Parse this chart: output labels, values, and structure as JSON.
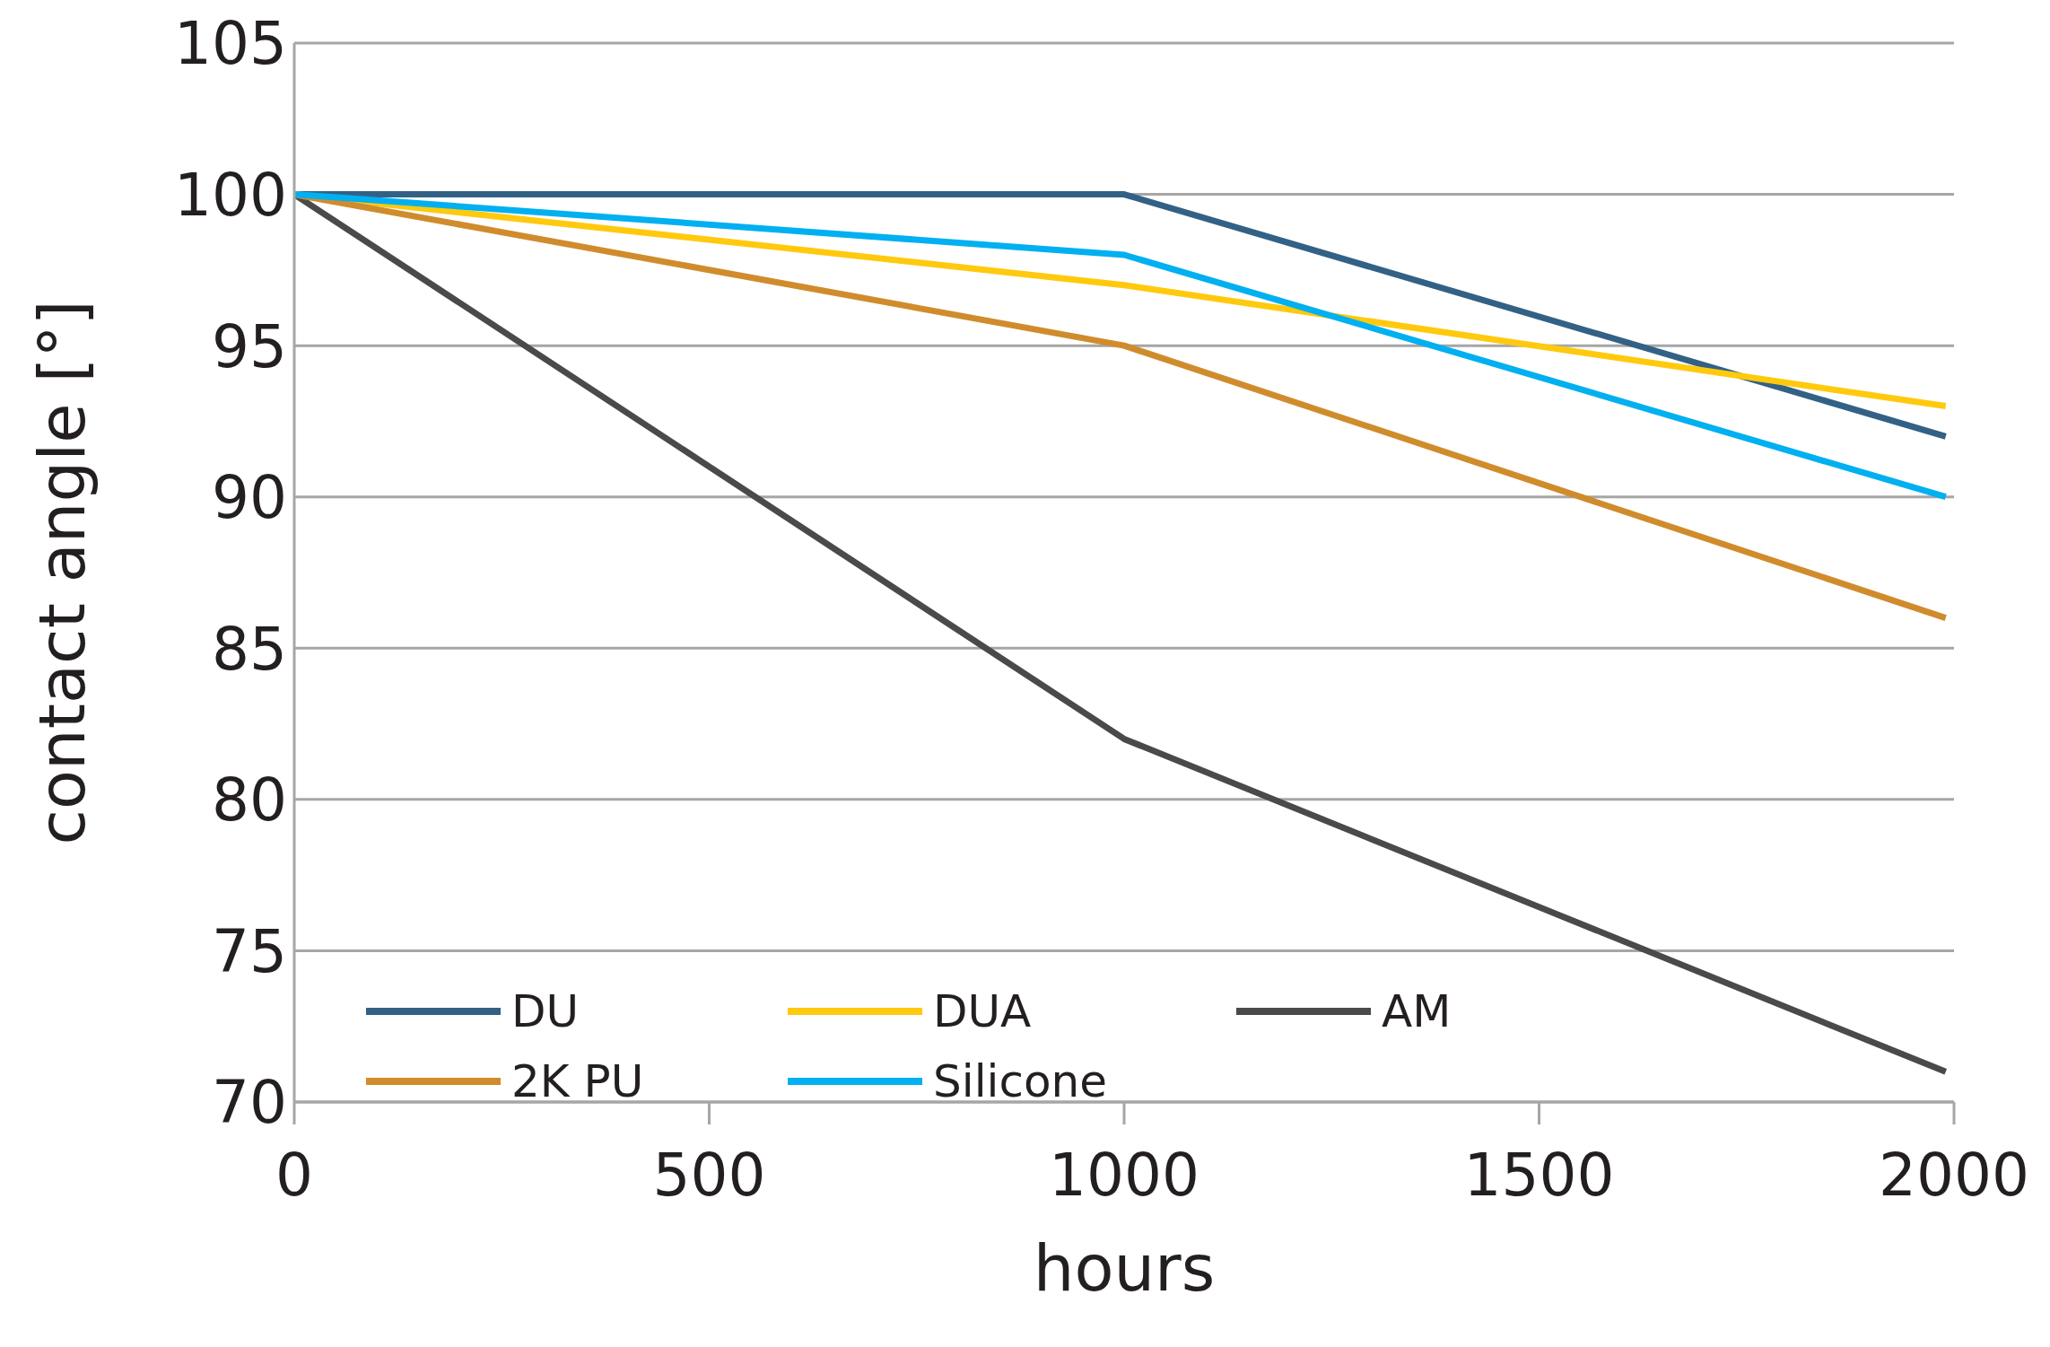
{
  "chart_data": {
    "type": "line",
    "xlabel": "hours",
    "ylabel": "contact angle [°]",
    "x": [
      0,
      1000,
      1990
    ],
    "series": [
      {
        "name": "DU",
        "color": "#336185",
        "values": [
          100,
          100,
          92
        ]
      },
      {
        "name": "DUA",
        "color": "#ffc90e",
        "values": [
          100,
          97,
          93
        ]
      },
      {
        "name": "AM",
        "color": "#4a4a4a",
        "values": [
          100,
          82,
          71
        ]
      },
      {
        "name": "2K PU",
        "color": "#d08c2c",
        "values": [
          100,
          95,
          86
        ]
      },
      {
        "name": "Silicone",
        "color": "#00b0f0",
        "values": [
          100,
          98,
          90
        ]
      }
    ],
    "xlim": [
      0,
      2000
    ],
    "xticks": [
      0,
      500,
      1000,
      1500,
      2000
    ],
    "ylim": [
      70,
      105
    ],
    "yticks": [
      70,
      75,
      80,
      85,
      90,
      95,
      100,
      105
    ],
    "grid": "y",
    "legend": "bottom",
    "marker": "none",
    "line_style": "solid"
  }
}
